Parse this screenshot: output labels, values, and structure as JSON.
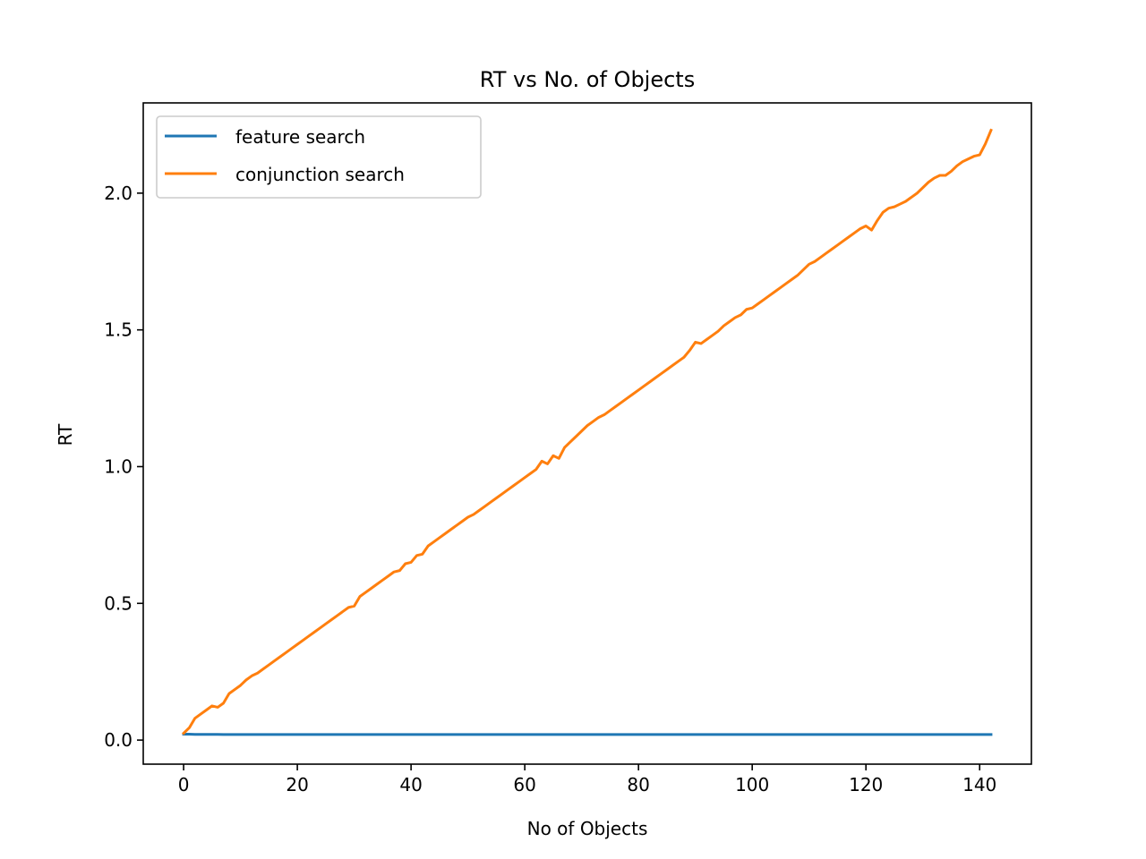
{
  "chart_data": {
    "type": "line",
    "title": "RT vs No. of Objects",
    "xlabel": "No of Objects",
    "ylabel": "RT",
    "xlim": [
      -7.1,
      149.1
    ],
    "ylim": [
      -0.088,
      2.33
    ],
    "xticks": [
      0,
      20,
      40,
      60,
      80,
      100,
      120,
      140
    ],
    "xtick_labels": [
      "0",
      "20",
      "40",
      "60",
      "80",
      "100",
      "120",
      "140"
    ],
    "yticks": [
      0.0,
      0.5,
      1.0,
      1.5,
      2.0
    ],
    "ytick_labels": [
      "0.0",
      "0.5",
      "1.0",
      "1.5",
      "2.0"
    ],
    "grid": false,
    "legend_position": "upper-left",
    "x": {
      "start": 0,
      "end": 142,
      "step": 1
    },
    "series": [
      {
        "name": "feature search",
        "color": "#1f77b4",
        "values": [
          0.0215,
          0.0215,
          0.021,
          0.021,
          0.021,
          0.021,
          0.021,
          0.0205,
          0.0205,
          0.0205,
          0.0205,
          0.0205,
          0.0205,
          0.0205,
          0.0205,
          0.0205,
          0.0205,
          0.0205,
          0.0205,
          0.0205,
          0.0205,
          0.0205,
          0.0205,
          0.0205,
          0.0205,
          0.0205,
          0.0205,
          0.0205,
          0.0205,
          0.0205,
          0.0205,
          0.0205,
          0.0205,
          0.0205,
          0.0205,
          0.0205,
          0.0205,
          0.0205,
          0.0205,
          0.0205,
          0.0205,
          0.0205,
          0.0205,
          0.0205,
          0.0205,
          0.0205,
          0.0205,
          0.0205,
          0.0205,
          0.0205,
          0.0205,
          0.0205,
          0.0205,
          0.0205,
          0.0205,
          0.0205,
          0.0205,
          0.0205,
          0.0205,
          0.0205,
          0.0205,
          0.0205,
          0.0205,
          0.0205,
          0.0205,
          0.0205,
          0.0205,
          0.0205,
          0.0205,
          0.0205,
          0.0205,
          0.0205,
          0.0205,
          0.0205,
          0.0205,
          0.0205,
          0.0205,
          0.0205,
          0.0205,
          0.0205,
          0.0205,
          0.0205,
          0.0205,
          0.0205,
          0.0205,
          0.0205,
          0.0205,
          0.0205,
          0.0205,
          0.0205,
          0.0205,
          0.0205,
          0.0205,
          0.0205,
          0.0205,
          0.0205,
          0.0205,
          0.0205,
          0.0205,
          0.0205,
          0.0205,
          0.0205,
          0.0205,
          0.0205,
          0.0205,
          0.0205,
          0.0205,
          0.0205,
          0.0205,
          0.0205,
          0.0205,
          0.0205,
          0.0205,
          0.0205,
          0.0205,
          0.0205,
          0.0205,
          0.0205,
          0.0205,
          0.0205,
          0.0205,
          0.0205,
          0.0205,
          0.0205,
          0.0205,
          0.0205,
          0.0205,
          0.0205,
          0.0205,
          0.0205,
          0.0205,
          0.0205,
          0.0205,
          0.0205,
          0.0205,
          0.0205,
          0.0205,
          0.0205,
          0.0205,
          0.0205,
          0.0205,
          0.0205,
          0.0205
        ]
      },
      {
        "name": "conjunction search",
        "color": "#ff7f0e",
        "values": [
          0.025,
          0.045,
          0.08,
          0.095,
          0.11,
          0.125,
          0.12,
          0.135,
          0.17,
          0.185,
          0.2,
          0.22,
          0.235,
          0.245,
          0.26,
          0.275,
          0.29,
          0.305,
          0.32,
          0.335,
          0.35,
          0.365,
          0.38,
          0.395,
          0.41,
          0.425,
          0.44,
          0.455,
          0.47,
          0.485,
          0.49,
          0.525,
          0.54,
          0.555,
          0.57,
          0.585,
          0.6,
          0.615,
          0.62,
          0.645,
          0.65,
          0.675,
          0.68,
          0.71,
          0.725,
          0.74,
          0.755,
          0.77,
          0.785,
          0.8,
          0.815,
          0.825,
          0.84,
          0.855,
          0.87,
          0.885,
          0.9,
          0.915,
          0.93,
          0.945,
          0.96,
          0.975,
          0.99,
          1.02,
          1.01,
          1.04,
          1.03,
          1.07,
          1.09,
          1.11,
          1.13,
          1.15,
          1.165,
          1.18,
          1.19,
          1.205,
          1.22,
          1.235,
          1.25,
          1.265,
          1.28,
          1.295,
          1.31,
          1.325,
          1.34,
          1.355,
          1.37,
          1.385,
          1.4,
          1.425,
          1.455,
          1.45,
          1.465,
          1.48,
          1.495,
          1.515,
          1.53,
          1.545,
          1.555,
          1.575,
          1.58,
          1.595,
          1.61,
          1.625,
          1.64,
          1.655,
          1.67,
          1.685,
          1.7,
          1.72,
          1.74,
          1.75,
          1.765,
          1.78,
          1.795,
          1.81,
          1.825,
          1.84,
          1.855,
          1.87,
          1.88,
          1.865,
          1.9,
          1.93,
          1.945,
          1.95,
          1.96,
          1.97,
          1.985,
          2.0,
          2.02,
          2.04,
          2.055,
          2.065,
          2.065,
          2.08,
          2.1,
          2.115,
          2.125,
          2.135,
          2.14,
          2.18,
          2.23
        ]
      }
    ]
  }
}
